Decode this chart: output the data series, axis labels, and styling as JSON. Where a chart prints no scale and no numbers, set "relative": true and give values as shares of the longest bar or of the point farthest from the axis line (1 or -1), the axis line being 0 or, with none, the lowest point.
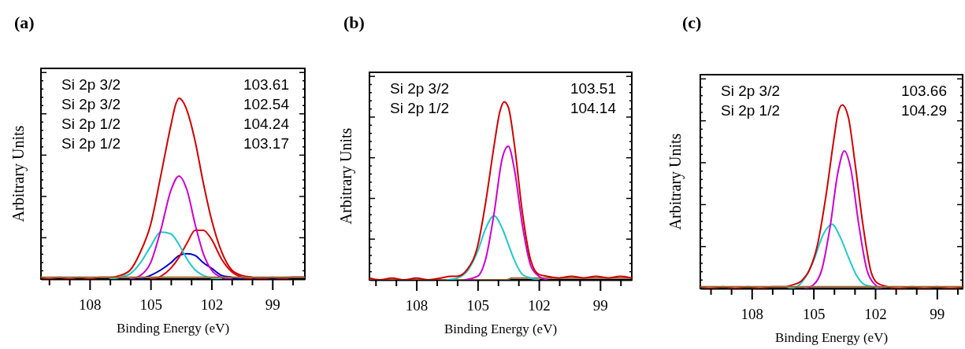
{
  "chart_data": [
    {
      "type": "line",
      "title": "(a)",
      "xlabel": "Binding Energy (eV)",
      "ylabel": "Arbitrary Units",
      "relative": true,
      "tick_labels": "x",
      "xlim": [
        110.4,
        97.4
      ],
      "xticks": [
        {
          "value": 110,
          "label": null
        },
        {
          "value": 109,
          "label": null
        },
        108,
        {
          "value": 107,
          "label": null
        },
        {
          "value": 106,
          "label": null
        },
        105,
        {
          "value": 104,
          "label": null
        },
        {
          "value": 103,
          "label": null
        },
        102,
        {
          "value": 101,
          "label": null
        },
        {
          "value": 100,
          "label": null
        },
        99,
        {
          "value": 98,
          "label": null
        }
      ],
      "annotations": [
        "Si 2p 3/2",
        "103.61",
        "Si 2p 3/2",
        "102.54",
        "Si 2p 1/2",
        "104.24",
        "Si 2p 1/2",
        "103.17"
      ],
      "series": [
        {
          "color": "#0000cc",
          "x": [
            105.5,
            105,
            104.5,
            104,
            103.6,
            103.2,
            102.8,
            102.4,
            102,
            101.5,
            101,
            100.5,
            98,
            97.4
          ],
          "values": [
            0,
            0.02,
            0.05,
            0.09,
            0.13,
            0.14,
            0.13,
            0.09,
            0.06,
            0.02,
            0.01,
            0,
            0.01,
            0.01
          ]
        },
        {
          "color": "#dd0000",
          "x": [
            105,
            104.5,
            104,
            103.6,
            103.2,
            102.8,
            102.4,
            102,
            101.5,
            101,
            100.5,
            100
          ],
          "values": [
            0,
            0.015,
            0.06,
            0.12,
            0.2,
            0.27,
            0.27,
            0.22,
            0.11,
            0.04,
            0.01,
            0
          ]
        },
        {
          "color": "#22c8c8",
          "x": [
            107,
            106.5,
            106,
            105.5,
            105,
            104.5,
            104,
            103.6,
            103.2,
            102.8,
            102.4,
            102,
            101.5
          ],
          "values": [
            0,
            0.01,
            0.03,
            0.09,
            0.18,
            0.26,
            0.25,
            0.19,
            0.11,
            0.05,
            0.02,
            0.005,
            0
          ]
        },
        {
          "color": "#cc00cc",
          "x": [
            106,
            105.5,
            105,
            104.5,
            104,
            103.6,
            103.2,
            102.8,
            102.4,
            102,
            101.5,
            101
          ],
          "values": [
            0,
            0.02,
            0.09,
            0.27,
            0.49,
            0.57,
            0.49,
            0.3,
            0.14,
            0.05,
            0.01,
            0
          ]
        },
        {
          "color": "#cc0000",
          "x": [
            110.4,
            110,
            109.5,
            109,
            108.5,
            108,
            107.5,
            107,
            106.5,
            106,
            105.5,
            105,
            104.5,
            104,
            103.75,
            103.6,
            103.4,
            103.2,
            102.8,
            102.4,
            102,
            101.5,
            101,
            100.5,
            100,
            99.5,
            99,
            98.5,
            98,
            97.4
          ],
          "values": [
            0.01,
            0,
            0.01,
            0,
            0.01,
            0,
            0.01,
            0.01,
            0.02,
            0.05,
            0.15,
            0.3,
            0.57,
            0.85,
            0.97,
            1,
            0.98,
            0.93,
            0.76,
            0.53,
            0.33,
            0.15,
            0.05,
            0.02,
            0.01,
            0,
            0.01,
            0,
            0.01,
            0.01
          ]
        },
        {
          "color": "#996633",
          "x": [
            110.4,
            97.4
          ],
          "values": [
            0.01,
            0.01
          ]
        }
      ]
    },
    {
      "type": "line",
      "title": "(b)",
      "xlabel": "Binding Energy (eV)",
      "ylabel": "Arbitrary Units",
      "relative": true,
      "tick_labels": "x",
      "xlim": [
        110.3,
        97.45
      ],
      "xticks": [
        {
          "value": 110,
          "label": null
        },
        {
          "value": 109,
          "label": null
        },
        108,
        {
          "value": 107,
          "label": null
        },
        {
          "value": 106,
          "label": null
        },
        105,
        {
          "value": 104,
          "label": null
        },
        {
          "value": 103,
          "label": null
        },
        102,
        {
          "value": 101,
          "label": null
        },
        {
          "value": 100,
          "label": null
        },
        99,
        {
          "value": 98,
          "label": null
        }
      ],
      "annotations": [
        "Si 2p 3/2",
        "103.51",
        "Si 2p 1/2",
        "104.14"
      ],
      "series": [
        {
          "color": "#996633",
          "x": [
            110.3,
            106.5,
            103.6,
            103.3,
            97.45
          ],
          "values": [
            0,
            0,
            0,
            0.01,
            0.01
          ]
        },
        {
          "color": "#22c8c8",
          "x": [
            106.5,
            106,
            105.5,
            105,
            104.6,
            104.2,
            103.8,
            103.5,
            103.2,
            102.8,
            102.4,
            102
          ],
          "values": [
            0,
            0.01,
            0.05,
            0.16,
            0.29,
            0.36,
            0.29,
            0.2,
            0.11,
            0.03,
            0.01,
            0
          ]
        },
        {
          "color": "#cc00cc",
          "x": [
            105.6,
            105,
            104.6,
            104.2,
            103.8,
            103.5,
            103.2,
            102.8,
            102.4,
            102,
            101.6
          ],
          "values": [
            0,
            0.02,
            0.12,
            0.37,
            0.68,
            0.75,
            0.62,
            0.3,
            0.08,
            0.02,
            0
          ]
        },
        {
          "color": "#cc0000",
          "x": [
            110.3,
            109.8,
            109.2,
            108.6,
            108,
            107.4,
            106.8,
            106.3,
            106,
            105.5,
            105,
            104.6,
            104.2,
            103.9,
            103.7,
            103.5,
            103.2,
            102.8,
            102.4,
            102,
            101.6,
            101,
            100.4,
            99.8,
            99.2,
            98.6,
            98,
            97.45
          ],
          "values": [
            0.01,
            0,
            0.01,
            0,
            0.01,
            0,
            0.01,
            0.02,
            0.02,
            0.06,
            0.19,
            0.44,
            0.75,
            0.95,
            1,
            0.97,
            0.76,
            0.37,
            0.11,
            0.03,
            0.02,
            0.01,
            0.02,
            0.01,
            0.02,
            0.01,
            0.02,
            0.01
          ]
        }
      ]
    },
    {
      "type": "line",
      "title": "(c)",
      "xlabel": "Binding Energy (eV)",
      "ylabel": "Arbitrary Units",
      "relative": true,
      "tick_labels": "x",
      "xlim": [
        110.5,
        97.75
      ],
      "xticks": [
        {
          "value": 110,
          "label": null
        },
        {
          "value": 109,
          "label": null
        },
        108,
        {
          "value": 107,
          "label": null
        },
        {
          "value": 106,
          "label": null
        },
        105,
        {
          "value": 104,
          "label": null
        },
        {
          "value": 103,
          "label": null
        },
        102,
        {
          "value": 101,
          "label": null
        },
        {
          "value": 100,
          "label": null
        },
        99,
        {
          "value": 98,
          "label": null
        }
      ],
      "annotations": [
        "Si 2p 3/2",
        "103.66",
        "Si 2p 1/2",
        "104.29"
      ],
      "series": [
        {
          "color": "#22c8c8",
          "x": [
            106.2,
            105.8,
            105.4,
            105,
            104.5,
            104.1,
            103.7,
            103.3,
            102.9,
            102.5,
            102.1,
            101.8
          ],
          "values": [
            0,
            0.01,
            0.06,
            0.15,
            0.3,
            0.35,
            0.28,
            0.17,
            0.07,
            0.02,
            0.01,
            0
          ]
        },
        {
          "color": "#cc00cc",
          "x": [
            105.4,
            105,
            104.6,
            104.2,
            103.8,
            103.5,
            103.2,
            102.8,
            102.4,
            102,
            101.7
          ],
          "values": [
            0,
            0.02,
            0.1,
            0.33,
            0.64,
            0.75,
            0.66,
            0.35,
            0.1,
            0.02,
            0
          ]
        },
        {
          "color": "#cc0000",
          "x": [
            110.5,
            110,
            109.4,
            108.8,
            108.2,
            107.6,
            107,
            106.4,
            106,
            105.6,
            105.2,
            104.8,
            104.4,
            104,
            103.8,
            103.6,
            103.3,
            103,
            102.6,
            102.2,
            101.9,
            101.4,
            100.8,
            100.2,
            99.6,
            99,
            98.4,
            97.75
          ],
          "values": [
            0.01,
            0,
            0.01,
            0,
            0.01,
            0,
            0.01,
            0.01,
            0.02,
            0.04,
            0.1,
            0.24,
            0.5,
            0.82,
            0.96,
            1,
            0.93,
            0.7,
            0.35,
            0.09,
            0.03,
            0.01,
            0,
            0.01,
            0,
            0.01,
            0,
            0.01
          ]
        },
        {
          "color": "#996633",
          "x": [
            110.5,
            97.75
          ],
          "values": [
            0.01,
            0.01
          ]
        }
      ]
    }
  ]
}
